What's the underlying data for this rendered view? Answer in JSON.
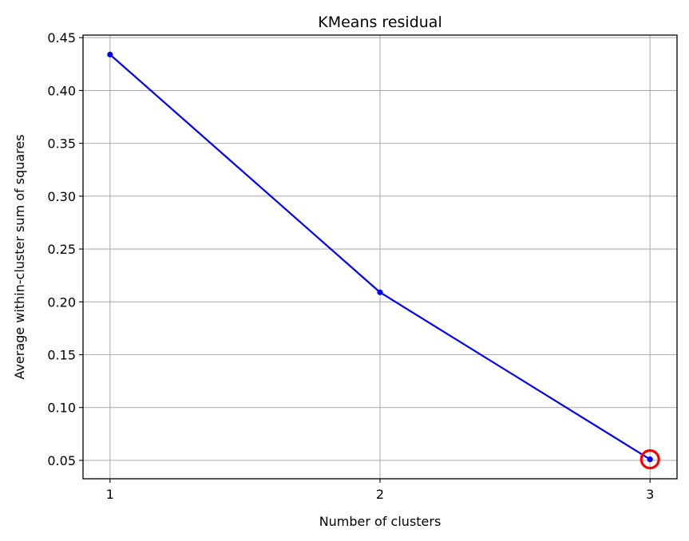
{
  "chart_data": {
    "type": "line",
    "title": "KMeans residual",
    "xlabel": "Number of clusters",
    "ylabel": "Average within-cluster sum of squares",
    "x": [
      1,
      2,
      3
    ],
    "series": [
      {
        "values": [
          0.434,
          0.209,
          0.051
        ],
        "color": "#0000ff",
        "marker": "dot"
      }
    ],
    "highlight": {
      "x": 3,
      "y": 0.051,
      "color": "#ff0000",
      "marker": "circle"
    },
    "xticks": [
      1,
      2,
      3
    ],
    "yticks": [
      0.05,
      0.1,
      0.15,
      0.2,
      0.25,
      0.3,
      0.35,
      0.4,
      0.45
    ],
    "ytick_labels": [
      "0.05",
      "0.10",
      "0.15",
      "0.20",
      "0.25",
      "0.30",
      "0.35",
      "0.40",
      "0.45"
    ],
    "xlim": [
      0.9,
      3.1
    ],
    "ylim": [
      0.0326,
      0.4524
    ],
    "grid": true,
    "grid_color": "#b0b0b0"
  }
}
